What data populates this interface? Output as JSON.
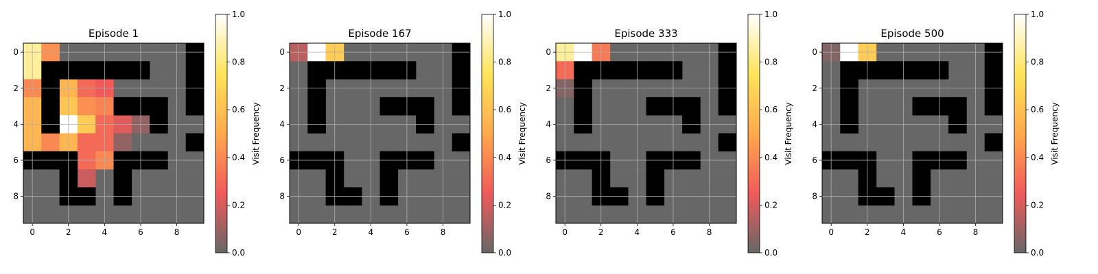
{
  "colorbar": {
    "label": "Visit Frequency",
    "ticks": [
      "0.0",
      "0.2",
      "0.4",
      "0.6",
      "0.8",
      "1.0"
    ],
    "range": [
      0,
      1
    ],
    "stops": [
      "#676767",
      "#f05a5a",
      "#ffa94d",
      "#ffe45a",
      "#ffffff"
    ]
  },
  "wall_color": "#000000",
  "axis_ticks": [
    "0",
    "2",
    "4",
    "6",
    "8"
  ],
  "chart_data": [
    {
      "type": "heatmap",
      "title": "Episode 1",
      "x_ticks": [
        0,
        2,
        4,
        6,
        8
      ],
      "y_ticks": [
        0,
        2,
        4,
        6,
        8
      ],
      "grid": true,
      "walls": [
        [
          0,
          9
        ],
        [
          1,
          1
        ],
        [
          1,
          2
        ],
        [
          1,
          3
        ],
        [
          1,
          4
        ],
        [
          1,
          5
        ],
        [
          1,
          6
        ],
        [
          1,
          9
        ],
        [
          2,
          1
        ],
        [
          2,
          9
        ],
        [
          3,
          1
        ],
        [
          3,
          5
        ],
        [
          3,
          6
        ],
        [
          3,
          7
        ],
        [
          3,
          9
        ],
        [
          4,
          1
        ],
        [
          4,
          7
        ],
        [
          5,
          9
        ],
        [
          6,
          0
        ],
        [
          6,
          1
        ],
        [
          6,
          2
        ],
        [
          6,
          5
        ],
        [
          6,
          6
        ],
        [
          6,
          7
        ],
        [
          7,
          2
        ],
        [
          7,
          5
        ],
        [
          8,
          2
        ],
        [
          8,
          3
        ],
        [
          8,
          5
        ]
      ],
      "visits": [
        [
          0,
          0,
          0.85
        ],
        [
          0,
          1,
          0.42
        ],
        [
          1,
          0,
          0.85
        ],
        [
          2,
          0,
          0.4
        ],
        [
          2,
          2,
          0.55
        ],
        [
          2,
          3,
          0.3
        ],
        [
          2,
          4,
          0.25
        ],
        [
          3,
          0,
          0.55
        ],
        [
          3,
          2,
          0.62
        ],
        [
          3,
          3,
          0.42
        ],
        [
          3,
          4,
          0.38
        ],
        [
          4,
          0,
          0.55
        ],
        [
          4,
          2,
          1.0
        ],
        [
          4,
          3,
          0.65
        ],
        [
          4,
          4,
          0.3
        ],
        [
          4,
          5,
          0.22
        ],
        [
          4,
          6,
          0.08
        ],
        [
          5,
          0,
          0.55
        ],
        [
          5,
          1,
          0.4
        ],
        [
          5,
          2,
          0.55
        ],
        [
          5,
          3,
          0.3
        ],
        [
          5,
          4,
          0.3
        ],
        [
          5,
          5,
          0.08
        ],
        [
          6,
          3,
          0.3
        ],
        [
          6,
          4,
          0.4
        ],
        [
          7,
          3,
          0.18
        ]
      ]
    },
    {
      "type": "heatmap",
      "title": "Episode 167",
      "x_ticks": [
        0,
        2,
        4,
        6,
        8
      ],
      "y_ticks": [
        0,
        2,
        4,
        6,
        8
      ],
      "grid": true,
      "walls": [
        [
          0,
          9
        ],
        [
          1,
          1
        ],
        [
          1,
          2
        ],
        [
          1,
          3
        ],
        [
          1,
          4
        ],
        [
          1,
          5
        ],
        [
          1,
          6
        ],
        [
          1,
          9
        ],
        [
          2,
          1
        ],
        [
          2,
          9
        ],
        [
          3,
          1
        ],
        [
          3,
          5
        ],
        [
          3,
          6
        ],
        [
          3,
          7
        ],
        [
          3,
          9
        ],
        [
          4,
          1
        ],
        [
          4,
          7
        ],
        [
          5,
          9
        ],
        [
          6,
          0
        ],
        [
          6,
          1
        ],
        [
          6,
          2
        ],
        [
          6,
          5
        ],
        [
          6,
          6
        ],
        [
          6,
          7
        ],
        [
          7,
          2
        ],
        [
          7,
          5
        ],
        [
          8,
          2
        ],
        [
          8,
          3
        ],
        [
          8,
          5
        ]
      ],
      "visits": [
        [
          0,
          0,
          0.15
        ],
        [
          0,
          1,
          1.0
        ],
        [
          0,
          2,
          0.65
        ]
      ]
    },
    {
      "type": "heatmap",
      "title": "Episode 333",
      "x_ticks": [
        0,
        2,
        4,
        6,
        8
      ],
      "y_ticks": [
        0,
        2,
        4,
        6,
        8
      ],
      "grid": true,
      "walls": [
        [
          0,
          9
        ],
        [
          1,
          1
        ],
        [
          1,
          2
        ],
        [
          1,
          3
        ],
        [
          1,
          4
        ],
        [
          1,
          5
        ],
        [
          1,
          6
        ],
        [
          1,
          9
        ],
        [
          2,
          1
        ],
        [
          2,
          9
        ],
        [
          3,
          1
        ],
        [
          3,
          5
        ],
        [
          3,
          6
        ],
        [
          3,
          7
        ],
        [
          3,
          9
        ],
        [
          4,
          1
        ],
        [
          4,
          7
        ],
        [
          5,
          9
        ],
        [
          6,
          0
        ],
        [
          6,
          1
        ],
        [
          6,
          2
        ],
        [
          6,
          5
        ],
        [
          6,
          6
        ],
        [
          6,
          7
        ],
        [
          7,
          2
        ],
        [
          7,
          5
        ],
        [
          8,
          2
        ],
        [
          8,
          3
        ],
        [
          8,
          5
        ]
      ],
      "visits": [
        [
          0,
          0,
          0.85
        ],
        [
          0,
          1,
          1.0
        ],
        [
          0,
          2,
          0.35
        ],
        [
          1,
          0,
          0.3
        ],
        [
          2,
          0,
          0.05
        ]
      ]
    },
    {
      "type": "heatmap",
      "title": "Episode 500",
      "x_ticks": [
        0,
        2,
        4,
        6,
        8
      ],
      "y_ticks": [
        0,
        2,
        4,
        6,
        8
      ],
      "grid": true,
      "walls": [
        [
          0,
          9
        ],
        [
          1,
          1
        ],
        [
          1,
          2
        ],
        [
          1,
          3
        ],
        [
          1,
          4
        ],
        [
          1,
          5
        ],
        [
          1,
          6
        ],
        [
          1,
          9
        ],
        [
          2,
          1
        ],
        [
          2,
          9
        ],
        [
          3,
          1
        ],
        [
          3,
          5
        ],
        [
          3,
          6
        ],
        [
          3,
          7
        ],
        [
          3,
          9
        ],
        [
          4,
          1
        ],
        [
          4,
          7
        ],
        [
          5,
          9
        ],
        [
          6,
          0
        ],
        [
          6,
          1
        ],
        [
          6,
          2
        ],
        [
          6,
          5
        ],
        [
          6,
          6
        ],
        [
          6,
          7
        ],
        [
          7,
          2
        ],
        [
          7,
          5
        ],
        [
          8,
          2
        ],
        [
          8,
          3
        ],
        [
          8,
          5
        ]
      ],
      "visits": [
        [
          0,
          0,
          0.05
        ],
        [
          0,
          1,
          1.0
        ],
        [
          0,
          2,
          0.65
        ]
      ]
    }
  ]
}
